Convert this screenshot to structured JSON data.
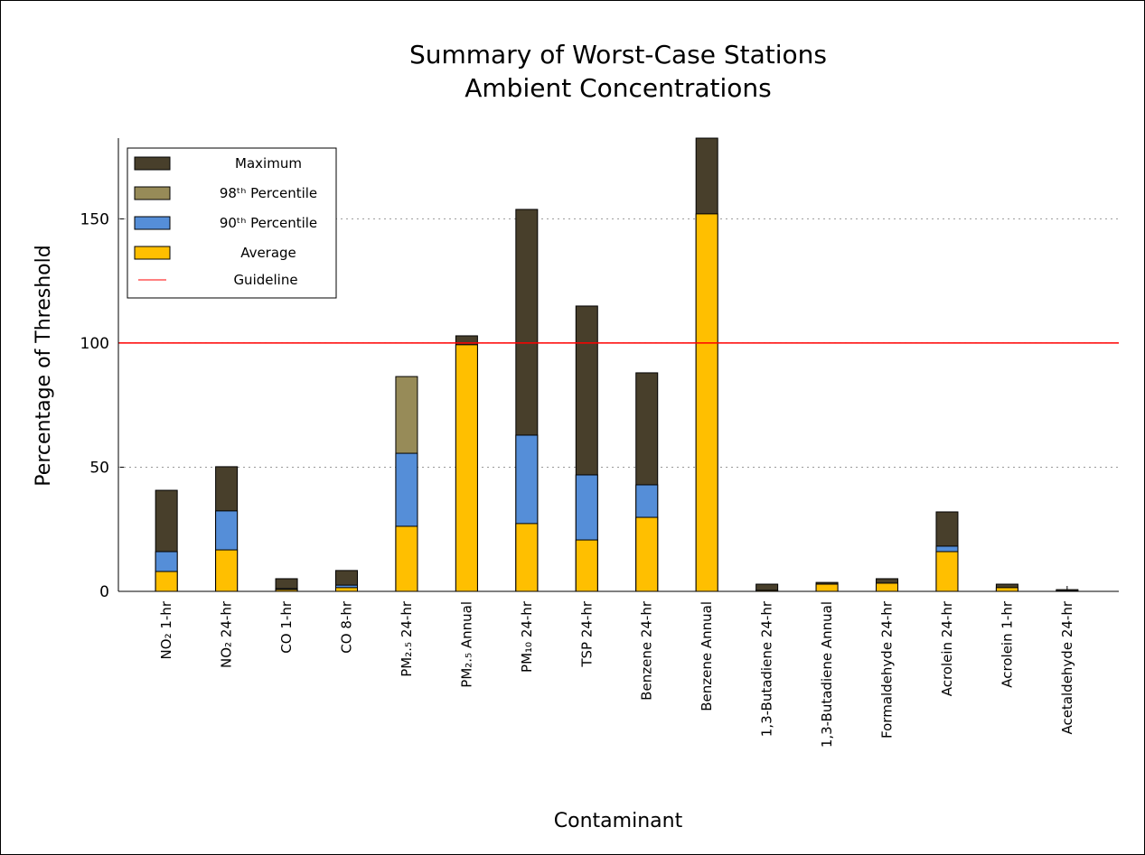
{
  "chart_data": {
    "type": "bar",
    "title": "Summary of Worst-Case Stations",
    "subtitle": "Ambient Concentrations",
    "x_label": "Contaminant",
    "y_label": "Percentage of Threshold",
    "categories": [
      "NO₂ 1-hr",
      "NO₂ 24-hr",
      "CO 1-hr",
      "CO 8-hr",
      "PM₂.₅ 24-hr",
      "PM₂.₅ Annual",
      "PM₁₀ 24-hr",
      "TSP 24-hr",
      "Benzene 24-hr",
      "Benzene Annual",
      "1,3-Butadiene 24-hr",
      "1,3-Butadiene Annual",
      "Formaldehyde 24-hr",
      "Acrolein 24-hr",
      "Acrolein 1-hr",
      "Acetaldehyde 24-hr"
    ],
    "series": [
      {
        "name": "Maximum",
        "color": "#483f2b",
        "values": [
          40.7,
          50.2,
          5.1,
          8.4,
          null,
          102.9,
          153.8,
          114.9,
          88,
          182.5,
          2.9,
          3.6,
          5.1,
          32,
          2.9,
          0.7
        ]
      },
      {
        "name": "98ᵗʰ Percentile",
        "color": "#978b58",
        "values": [
          null,
          null,
          null,
          null,
          86.5,
          null,
          null,
          null,
          null,
          null,
          null,
          null,
          null,
          null,
          null,
          null
        ]
      },
      {
        "name": "90ᵗʰ Percentile",
        "color": "#558ed8",
        "values": [
          16,
          32.4,
          1.1,
          2.5,
          55.6,
          null,
          62.9,
          46.9,
          42.9,
          null,
          null,
          null,
          null,
          18.2,
          null,
          null
        ]
      },
      {
        "name": "Average",
        "color": "#ffbf00",
        "values": [
          8,
          16.7,
          0.7,
          1.5,
          26.2,
          99.3,
          27.3,
          20.7,
          29.8,
          152,
          0.4,
          2.9,
          3.3,
          16,
          1.5,
          0.2
        ]
      }
    ],
    "guideline": {
      "name": "Guideline",
      "value": 100,
      "color": "#ff0000"
    },
    "ylim": [
      0,
      182.5
    ],
    "yticks": [
      0,
      50,
      100,
      150
    ],
    "grid": true,
    "legend": "upper left"
  }
}
